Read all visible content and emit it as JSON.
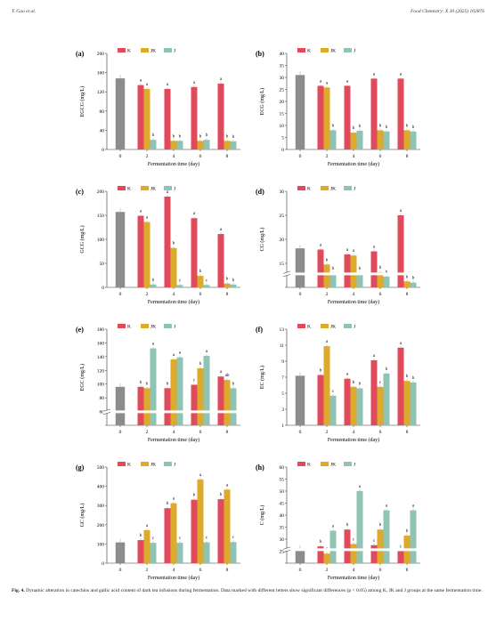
{
  "header": {
    "left": "Y. Gao et al.",
    "right": "Food Chemistry: X 30 (2025) 102876"
  },
  "colors": {
    "control": "#8c8c8c",
    "K": "#e04a5a",
    "JK": "#deaa2c",
    "J": "#8fc3b3"
  },
  "chart_data": [
    {
      "panel_label": "(a)",
      "type": "bar",
      "xlabel": "Fermentation time (day)",
      "ylabel": "EGCG (mg/L)",
      "ylim": [
        0,
        200
      ],
      "yticks": [
        "0",
        "40",
        "80",
        "120",
        "160",
        "200"
      ],
      "categories": [
        "0",
        "2",
        "4",
        "6",
        "8"
      ],
      "legend": [
        "K",
        "JK",
        "J"
      ],
      "control": 148,
      "series": [
        {
          "name": "K",
          "values": [
            null,
            134,
            126,
            130,
            137
          ],
          "labels": [
            "",
            "a",
            "a",
            "a",
            "a"
          ]
        },
        {
          "name": "JK",
          "values": [
            null,
            126,
            18,
            18,
            18
          ],
          "labels": [
            "",
            "a",
            "b",
            "b",
            "b"
          ]
        },
        {
          "name": "J",
          "values": [
            null,
            20,
            18,
            20,
            17
          ],
          "labels": [
            "",
            "b",
            "b",
            "b",
            "b"
          ]
        }
      ]
    },
    {
      "panel_label": "(b)",
      "type": "bar",
      "xlabel": "Fermentation time (day)",
      "ylabel": "ECG (mg/L)",
      "ylim": [
        0,
        40
      ],
      "yticks": [
        "0",
        "5",
        "10",
        "15",
        "20",
        "25",
        "30",
        "35",
        "40"
      ],
      "categories": [
        "0",
        "2",
        "4",
        "6",
        "8"
      ],
      "legend": [
        "K",
        "JK",
        "J"
      ],
      "control": 31,
      "series": [
        {
          "name": "K",
          "values": [
            null,
            26.5,
            26.5,
            29.5,
            29.5
          ],
          "labels": [
            "",
            "a",
            "a",
            "a",
            "a"
          ]
        },
        {
          "name": "JK",
          "values": [
            null,
            25.8,
            7,
            8,
            8
          ],
          "labels": [
            "",
            "a",
            "b",
            "b",
            "b"
          ]
        },
        {
          "name": "J",
          "values": [
            null,
            8,
            7.8,
            7.5,
            7.5
          ],
          "labels": [
            "",
            "b",
            "b",
            "b",
            "b"
          ]
        }
      ]
    },
    {
      "panel_label": "(c)",
      "type": "bar",
      "xlabel": "Fermentation time (day)",
      "ylabel": "GCG (mg/L)",
      "ylim": [
        0,
        200
      ],
      "yticks": [
        "0",
        "50",
        "100",
        "150",
        "200"
      ],
      "categories": [
        "0",
        "2",
        "4",
        "6",
        "8"
      ],
      "legend": [
        "K",
        "JK",
        "J"
      ],
      "control": 157,
      "series": [
        {
          "name": "K",
          "values": [
            null,
            149,
            189,
            144,
            111
          ],
          "labels": [
            "",
            "a",
            "a",
            "a",
            "a"
          ]
        },
        {
          "name": "JK",
          "values": [
            null,
            136,
            82,
            24,
            8
          ],
          "labels": [
            "",
            "a",
            "b",
            "b",
            "b"
          ]
        },
        {
          "name": "J",
          "values": [
            null,
            6,
            5,
            5,
            6
          ],
          "labels": [
            "",
            "b",
            "c",
            "c",
            "b"
          ]
        }
      ]
    },
    {
      "panel_label": "(d)",
      "type": "bar",
      "xlabel": "Fermentation time (day)",
      "ylabel": "CG (mg/L)",
      "ylim": [
        14,
        30
      ],
      "axis_break": true,
      "yticks": [
        "",
        "15",
        "20",
        "25",
        "30"
      ],
      "categories": [
        "0",
        "2",
        "4",
        "6",
        "8"
      ],
      "legend": [
        "K",
        "JK",
        "J"
      ],
      "control": 20.5,
      "series": [
        {
          "name": "K",
          "values": [
            null,
            20.3,
            19.5,
            20,
            26
          ],
          "labels": [
            "",
            "a",
            "a",
            "a",
            "a"
          ]
        },
        {
          "name": "JK",
          "values": [
            null,
            17.8,
            19.3,
            16.5,
            15
          ],
          "labels": [
            "",
            "b",
            "a",
            "b",
            "b"
          ]
        },
        {
          "name": "J",
          "values": [
            null,
            16.4,
            16.4,
            15.8,
            14.8
          ],
          "labels": [
            "",
            "b",
            "b",
            "b",
            "b"
          ]
        }
      ]
    },
    {
      "panel_label": "(e)",
      "type": "bar",
      "xlabel": "Fermentation time (day)",
      "ylabel": "EGC (mg/L)",
      "ylim": [
        40,
        180
      ],
      "axis_break": true,
      "yticks": [
        "",
        "60",
        "80",
        "100",
        "120",
        "140",
        "160",
        "180"
      ],
      "categories": [
        "0",
        "2",
        "4",
        "6",
        "8"
      ],
      "legend": [
        "K",
        "JK",
        "J"
      ],
      "control": 96,
      "series": [
        {
          "name": "K",
          "values": [
            null,
            96,
            94,
            99,
            111
          ],
          "labels": [
            "",
            "b",
            "b",
            "c",
            "a"
          ]
        },
        {
          "name": "JK",
          "values": [
            null,
            94,
            136,
            123,
            106
          ],
          "labels": [
            "",
            "b",
            "a",
            "b",
            "ab"
          ]
        },
        {
          "name": "J",
          "values": [
            null,
            152,
            139,
            141,
            94
          ],
          "labels": [
            "",
            "a",
            "a",
            "a",
            "b"
          ]
        }
      ]
    },
    {
      "panel_label": "(f)",
      "type": "bar",
      "xlabel": "Fermentation time (day)",
      "ylabel": "EC (mg/L)",
      "ylim": [
        0,
        13
      ],
      "yticks": [
        "1",
        "3",
        "5",
        "7",
        "9",
        "11",
        "13"
      ],
      "categories": [
        "0",
        "2",
        "4",
        "6",
        "8"
      ],
      "legend": [
        "K",
        "JK",
        "J"
      ],
      "control": 6.7,
      "series": [
        {
          "name": "K",
          "values": [
            null,
            6.8,
            6.3,
            8.8,
            10.5
          ],
          "labels": [
            "",
            "b",
            "a",
            "a",
            "a"
          ]
        },
        {
          "name": "JK",
          "values": [
            null,
            10.7,
            5.2,
            5.2,
            6
          ],
          "labels": [
            "",
            "a",
            "b",
            "c",
            "b"
          ]
        },
        {
          "name": "J",
          "values": [
            null,
            4,
            5,
            7,
            5.8
          ],
          "labels": [
            "",
            "c",
            "b",
            "b",
            "b"
          ]
        }
      ]
    },
    {
      "panel_label": "(g)",
      "type": "bar",
      "xlabel": "Fermentation time (day)",
      "ylabel": "GC (mg/L)",
      "ylim": [
        0,
        500
      ],
      "yticks": [
        "0",
        "100",
        "200",
        "300",
        "400",
        "500"
      ],
      "categories": [
        "0",
        "2",
        "4",
        "6",
        "8"
      ],
      "legend": [
        "K",
        "JK",
        "J"
      ],
      "control": 108,
      "series": [
        {
          "name": "K",
          "values": [
            null,
            120,
            286,
            330,
            333
          ],
          "labels": [
            "",
            "b",
            "b",
            "b",
            "b"
          ]
        },
        {
          "name": "JK",
          "values": [
            null,
            172,
            312,
            436,
            383
          ],
          "labels": [
            "",
            "a",
            "a",
            "a",
            "a"
          ]
        },
        {
          "name": "J",
          "values": [
            null,
            106,
            106,
            108,
            110
          ],
          "labels": [
            "",
            "c",
            "c",
            "c",
            "c"
          ]
        }
      ]
    },
    {
      "panel_label": "(h)",
      "type": "bar",
      "xlabel": "Fermentation time (day)",
      "ylabel": "C (mg/L)",
      "ylim": [
        20,
        60
      ],
      "axis_break": true,
      "yticks": [
        "",
        "25",
        "30",
        "35",
        "40",
        "45",
        "50",
        "55",
        "60"
      ],
      "categories": [
        "0",
        "2",
        "4",
        "6",
        "8"
      ],
      "legend": [
        "K",
        "JK",
        "J"
      ],
      "control": 26,
      "series": [
        {
          "name": "K",
          "values": [
            null,
            27,
            34,
            27.5,
            25
          ],
          "labels": [
            "",
            "b",
            "b",
            "c",
            "c"
          ]
        },
        {
          "name": "JK",
          "values": [
            null,
            24,
            28,
            34,
            31.5
          ],
          "labels": [
            "",
            "c",
            "c",
            "b",
            "b"
          ]
        },
        {
          "name": "J",
          "values": [
            null,
            33.5,
            50,
            42,
            42
          ],
          "labels": [
            "",
            "a",
            "a",
            "a",
            "a"
          ]
        }
      ]
    }
  ],
  "caption": {
    "label": "Fig. 4.",
    "text": "Dynamic alteration in catechins and gallic acid content of dark tea infusions during fermentation. Data marked with different letters show significant differences (p < 0.05) among K, JK and J groups at the same fermentation time."
  }
}
